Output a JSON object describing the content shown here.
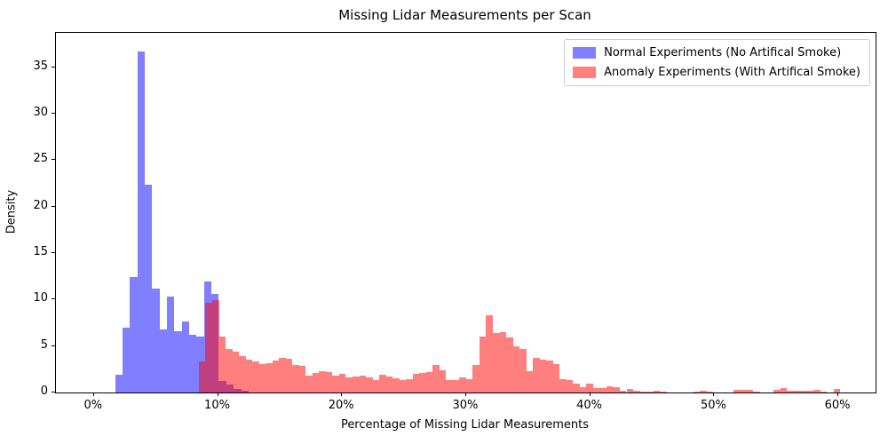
{
  "chart_data": {
    "type": "bar",
    "subtype": "histogram-density-overlay",
    "title": "Missing Lidar Measurements per Scan",
    "xlabel": "Percentage of Missing Lidar Measurements",
    "ylabel": "Density",
    "xlim": [
      -3.06,
      63.0
    ],
    "ylim": [
      0,
      38.7
    ],
    "x_ticks": [
      0,
      10,
      20,
      30,
      40,
      50,
      60
    ],
    "x_tick_labels": [
      "0%",
      "10%",
      "20%",
      "30%",
      "40%",
      "50%",
      "60%"
    ],
    "y_ticks": [
      0,
      5,
      10,
      15,
      20,
      25,
      30,
      35
    ],
    "grid": false,
    "legend_position": "upper right",
    "series": [
      {
        "id": "normal",
        "name": "Normal Experiments (No Artifical Smoke)",
        "color": "#0000ff",
        "alpha": 0.5,
        "rgba": "rgba(0,0,255,0.5)",
        "bin_start_percent": 1.7,
        "bin_width_percent": 0.598,
        "densities": [
          1.9,
          7.0,
          12.4,
          36.7,
          22.4,
          11.2,
          6.8,
          10.3,
          6.6,
          7.6,
          6.2,
          6.0,
          11.9,
          10.6,
          1.2,
          0.9,
          0.4,
          0.15
        ]
      },
      {
        "id": "anomaly",
        "name": "Anomaly Experiments (With Artifical Smoke)",
        "color": "#ff0000",
        "alpha": 0.5,
        "rgba": "rgba(255,0,0,0.5)",
        "bin_start_percent": 8.46,
        "bin_width_percent": 0.5385,
        "densities": [
          3.3,
          9.7,
          9.9,
          6.0,
          4.65,
          4.4,
          3.9,
          3.5,
          3.3,
          3.05,
          3.2,
          3.4,
          3.75,
          3.6,
          3.0,
          2.85,
          1.85,
          2.1,
          2.25,
          2.2,
          1.8,
          2.0,
          1.6,
          1.7,
          1.8,
          1.65,
          1.3,
          1.9,
          1.75,
          1.5,
          1.3,
          1.4,
          2.05,
          2.1,
          2.2,
          3.0,
          2.4,
          1.35,
          1.3,
          1.6,
          1.45,
          3.0,
          6.0,
          8.35,
          6.4,
          6.5,
          5.9,
          5.0,
          4.7,
          2.3,
          3.7,
          3.5,
          3.4,
          3.1,
          1.4,
          1.3,
          0.95,
          0.6,
          0.95,
          0.5,
          0.5,
          0.7,
          0.55,
          0.2,
          0.35,
          0.15,
          0.05,
          0.1,
          0.15,
          0.05,
          0,
          0,
          0,
          0,
          0.1,
          0.15,
          0.05,
          0,
          0,
          0,
          0.25,
          0.28,
          0.25,
          0.1,
          0,
          0,
          0.3,
          0.5,
          0.2,
          0.2,
          0.15,
          0.2,
          0.3,
          0.1,
          0,
          0.4
        ]
      }
    ]
  }
}
